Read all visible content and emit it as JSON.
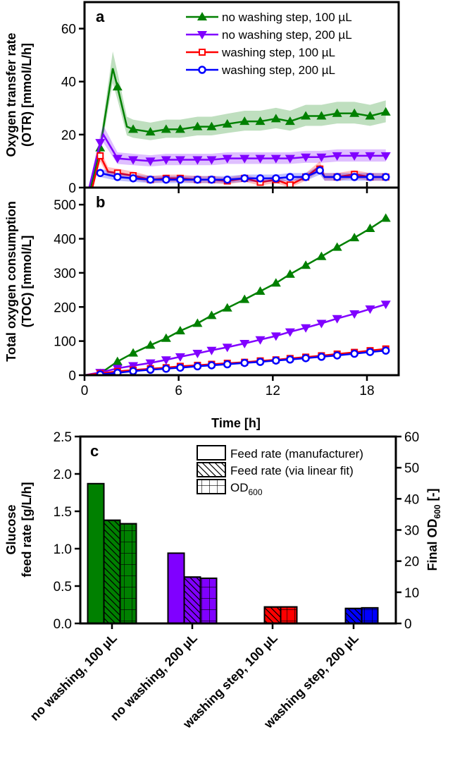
{
  "chart_data": [
    {
      "panel": "a",
      "type": "line",
      "ylabel_line1": "Oxygen transfer rate",
      "ylabel_line2": "(OTR)  [mmol/L/h]",
      "ylim": [
        0,
        70
      ],
      "yticks": [
        0,
        20,
        40,
        60
      ],
      "xlim": [
        0,
        20
      ],
      "xticks": [
        0,
        6,
        12,
        18
      ],
      "legend_placement": "top-right",
      "series": [
        {
          "name": "no washing step, 100 µL",
          "color": "#008000",
          "marker": "triangle-up",
          "points": [
            [
              0.4,
              0
            ],
            [
              1,
              15
            ],
            [
              1.8,
              45
            ],
            [
              2.1,
              38
            ],
            [
              2.7,
              23
            ],
            [
              3.1,
              22
            ],
            [
              4.2,
              21
            ],
            [
              5.2,
              22
            ],
            [
              6.1,
              22
            ],
            [
              7.2,
              23
            ],
            [
              8.1,
              23
            ],
            [
              9.1,
              24
            ],
            [
              10.2,
              25
            ],
            [
              11.2,
              25
            ],
            [
              12.2,
              26
            ],
            [
              13.1,
              25
            ],
            [
              14.1,
              27
            ],
            [
              15.1,
              27
            ],
            [
              16.1,
              28
            ],
            [
              17.2,
              28
            ],
            [
              18.2,
              27
            ],
            [
              19.2,
              28.5
            ]
          ],
          "markers": [
            [
              1,
              15
            ],
            [
              2.1,
              38
            ],
            [
              3.1,
              22
            ],
            [
              4.2,
              21
            ],
            [
              5.2,
              22
            ],
            [
              6.1,
              22
            ],
            [
              7.2,
              23
            ],
            [
              8.1,
              23
            ],
            [
              9.1,
              24
            ],
            [
              10.2,
              25
            ],
            [
              11.2,
              25
            ],
            [
              12.2,
              26
            ],
            [
              13.1,
              25
            ],
            [
              14.1,
              27
            ],
            [
              15.1,
              27
            ],
            [
              16.1,
              28
            ],
            [
              17.2,
              28
            ],
            [
              18.2,
              27
            ],
            [
              19.2,
              28.5
            ]
          ]
        },
        {
          "name": "no washing step, 200 µL",
          "color": "#8000ff",
          "marker": "triangle-down",
          "points": [
            [
              0.3,
              0
            ],
            [
              1,
              17
            ],
            [
              1.2,
              20
            ],
            [
              2.1,
              11
            ],
            [
              3.1,
              10.5
            ],
            [
              4.2,
              10
            ],
            [
              5.2,
              10.5
            ],
            [
              6.1,
              10.5
            ],
            [
              7.2,
              10.5
            ],
            [
              8.1,
              10.5
            ],
            [
              9.1,
              11
            ],
            [
              10.2,
              11
            ],
            [
              11.2,
              11
            ],
            [
              12.2,
              11
            ],
            [
              13.1,
              11
            ],
            [
              14.1,
              11.5
            ],
            [
              15.1,
              11.5
            ],
            [
              16.1,
              12
            ],
            [
              17.2,
              12
            ],
            [
              18.2,
              12
            ],
            [
              19.2,
              12
            ]
          ],
          "markers": [
            [
              1,
              17
            ],
            [
              2.1,
              11
            ],
            [
              3.1,
              10.5
            ],
            [
              4.2,
              10
            ],
            [
              5.2,
              10.5
            ],
            [
              6.1,
              10.5
            ],
            [
              7.2,
              10.5
            ],
            [
              8.1,
              10.5
            ],
            [
              9.1,
              11
            ],
            [
              10.2,
              11
            ],
            [
              11.2,
              11
            ],
            [
              12.2,
              11
            ],
            [
              13.1,
              11
            ],
            [
              14.1,
              11.5
            ],
            [
              15.1,
              11.5
            ],
            [
              16.1,
              12
            ],
            [
              17.2,
              12
            ],
            [
              18.2,
              12
            ],
            [
              19.2,
              12
            ]
          ]
        },
        {
          "name": "washing step, 100 µL",
          "color": "#ff0000",
          "marker": "square-open",
          "points": [
            [
              0.5,
              0
            ],
            [
              1,
              12
            ],
            [
              1.5,
              6
            ],
            [
              2.1,
              5.5
            ],
            [
              3.1,
              4.5
            ],
            [
              4.2,
              3
            ],
            [
              5.2,
              3.5
            ],
            [
              6.1,
              3.5
            ],
            [
              7.2,
              3
            ],
            [
              8.1,
              3
            ],
            [
              9.1,
              2.5
            ],
            [
              10.2,
              3.5
            ],
            [
              11.2,
              2
            ],
            [
              12.2,
              3
            ],
            [
              13.1,
              1
            ],
            [
              14.1,
              4
            ],
            [
              15,
              8
            ],
            [
              15.3,
              4
            ],
            [
              16.1,
              4
            ],
            [
              17.2,
              5
            ],
            [
              18.2,
              4
            ],
            [
              19.2,
              4
            ]
          ],
          "markers": [
            [
              1,
              12
            ],
            [
              2.1,
              5.5
            ],
            [
              3.1,
              4.5
            ],
            [
              4.2,
              3
            ],
            [
              5.2,
              3.5
            ],
            [
              6.1,
              3.5
            ],
            [
              7.2,
              3
            ],
            [
              8.1,
              3
            ],
            [
              9.1,
              2.5
            ],
            [
              10.2,
              3.5
            ],
            [
              11.2,
              2
            ],
            [
              12.2,
              3
            ],
            [
              13.1,
              1
            ],
            [
              14.1,
              4
            ],
            [
              15,
              7
            ],
            [
              16.1,
              4
            ],
            [
              17.2,
              5
            ],
            [
              18.2,
              4
            ],
            [
              19.2,
              4
            ]
          ]
        },
        {
          "name": "washing step, 200 µL",
          "color": "#0000ff",
          "marker": "circle-open",
          "points": [
            [
              1,
              5.5
            ],
            [
              2.1,
              4
            ],
            [
              3.1,
              3.5
            ],
            [
              4.2,
              3
            ],
            [
              5.2,
              3
            ],
            [
              6.1,
              3
            ],
            [
              7.2,
              3
            ],
            [
              8.1,
              3
            ],
            [
              9.1,
              3
            ],
            [
              10.2,
              3.5
            ],
            [
              11.2,
              3.5
            ],
            [
              12.2,
              3.5
            ],
            [
              13.1,
              4
            ],
            [
              14.1,
              4
            ],
            [
              15,
              6.5
            ],
            [
              15.3,
              4
            ],
            [
              16.1,
              4
            ],
            [
              17.2,
              4
            ],
            [
              18.2,
              4
            ],
            [
              19.2,
              4
            ]
          ],
          "markers": [
            [
              1,
              5.5
            ],
            [
              2.1,
              4
            ],
            [
              3.1,
              3.5
            ],
            [
              4.2,
              3
            ],
            [
              5.2,
              3
            ],
            [
              6.1,
              3
            ],
            [
              7.2,
              3
            ],
            [
              8.1,
              3
            ],
            [
              9.1,
              3
            ],
            [
              10.2,
              3.5
            ],
            [
              11.2,
              3.5
            ],
            [
              12.2,
              3.5
            ],
            [
              13.1,
              4
            ],
            [
              14.1,
              4
            ],
            [
              15,
              6.5
            ],
            [
              16.1,
              4
            ],
            [
              17.2,
              4
            ],
            [
              18.2,
              4
            ],
            [
              19.2,
              4
            ]
          ]
        }
      ]
    },
    {
      "panel": "b",
      "type": "line",
      "ylabel_line1": "Total oxygen consumption",
      "ylabel_line2": "(TOC)  [mmol/L]",
      "xlabel": "Time  [h]",
      "ylim": [
        0,
        550
      ],
      "yticks": [
        0,
        100,
        200,
        300,
        400,
        500
      ],
      "xlim": [
        0,
        20
      ],
      "xticks": [
        0,
        6,
        12,
        18
      ],
      "series": [
        {
          "name": "no washing step, 100 µL",
          "color": "#008000",
          "marker": "triangle-up",
          "points": [
            [
              0,
              0
            ],
            [
              1,
              5
            ],
            [
              2.1,
              40
            ],
            [
              3.1,
              65
            ],
            [
              4.2,
              88
            ],
            [
              5.2,
              108
            ],
            [
              6.1,
              130
            ],
            [
              7.2,
              152
            ],
            [
              8.1,
              175
            ],
            [
              9.1,
              197
            ],
            [
              10.2,
              222
            ],
            [
              11.2,
              246
            ],
            [
              12.2,
              270
            ],
            [
              13.1,
              296
            ],
            [
              14.1,
              322
            ],
            [
              15.1,
              348
            ],
            [
              16.1,
              375
            ],
            [
              17.2,
              403
            ],
            [
              18.2,
              430
            ],
            [
              19.2,
              460
            ]
          ]
        },
        {
          "name": "no washing step, 200 µL",
          "color": "#8000ff",
          "marker": "triangle-down",
          "points": [
            [
              0,
              0
            ],
            [
              1,
              8
            ],
            [
              2.1,
              20
            ],
            [
              3.1,
              28
            ],
            [
              4.2,
              36
            ],
            [
              5.2,
              45
            ],
            [
              6.1,
              54
            ],
            [
              7.2,
              64
            ],
            [
              8.1,
              73
            ],
            [
              9.1,
              82
            ],
            [
              10.2,
              93
            ],
            [
              11.2,
              104
            ],
            [
              12.2,
              115
            ],
            [
              13.1,
              127
            ],
            [
              14.1,
              139
            ],
            [
              15.1,
              152
            ],
            [
              16.1,
              166
            ],
            [
              17.2,
              180
            ],
            [
              18.2,
              194
            ],
            [
              19.2,
              208
            ]
          ]
        },
        {
          "name": "washing step, 100 µL",
          "color": "#ff0000",
          "marker": "square-open",
          "points": [
            [
              0,
              0
            ],
            [
              1,
              5
            ],
            [
              2.1,
              11
            ],
            [
              3.1,
              15
            ],
            [
              4.2,
              19
            ],
            [
              5.2,
              22
            ],
            [
              6.1,
              26
            ],
            [
              7.2,
              29
            ],
            [
              8.1,
              32
            ],
            [
              9.1,
              35
            ],
            [
              10.2,
              38
            ],
            [
              11.2,
              42
            ],
            [
              12.2,
              45
            ],
            [
              13.1,
              49
            ],
            [
              14.1,
              53
            ],
            [
              15.1,
              57
            ],
            [
              16.1,
              62
            ],
            [
              17.2,
              67
            ],
            [
              18.2,
              72
            ],
            [
              19.2,
              77
            ]
          ]
        },
        {
          "name": "washing step, 200 µL",
          "color": "#0000ff",
          "marker": "circle-open",
          "points": [
            [
              1,
              2
            ],
            [
              2.1,
              7
            ],
            [
              3.1,
              12
            ],
            [
              4.2,
              16
            ],
            [
              5.2,
              19
            ],
            [
              6.1,
              22
            ],
            [
              7.2,
              26
            ],
            [
              8.1,
              29
            ],
            [
              9.1,
              32
            ],
            [
              10.2,
              36
            ],
            [
              11.2,
              39
            ],
            [
              12.2,
              43
            ],
            [
              13.1,
              46
            ],
            [
              14.1,
              50
            ],
            [
              15.1,
              54
            ],
            [
              16.1,
              58
            ],
            [
              17.2,
              63
            ],
            [
              18.2,
              68
            ],
            [
              19.2,
              72
            ]
          ]
        }
      ]
    },
    {
      "panel": "c",
      "type": "bar",
      "ylabel_line1": "Glucose",
      "ylabel_line2": "feed rate  [g/L/h]",
      "y2label": "Final OD",
      "y2label_sub": "600",
      "y2label_unit": "  [-]",
      "ylim": [
        0,
        2.5
      ],
      "yticks": [
        "0.0",
        "0.5",
        "1.0",
        "1.5",
        "2.0",
        "2.5"
      ],
      "y2lim": [
        0,
        60
      ],
      "y2ticks": [
        0,
        10,
        20,
        30,
        40,
        50,
        60
      ],
      "categories": [
        "no washing, 100 µL",
        "no washing, 200 µL",
        "washing step, 100 µL",
        "washing step, 200 µL"
      ],
      "colors": [
        "#008000",
        "#8000ff",
        "#ff0000",
        "#0000ff"
      ],
      "series": [
        {
          "name": "Feed rate (manufacturer)",
          "axis": "left",
          "pattern": "solid",
          "values": [
            1.87,
            0.94,
            null,
            null
          ]
        },
        {
          "name": "Feed rate (via linear fit)",
          "axis": "left",
          "pattern": "hatch",
          "values": [
            1.38,
            0.62,
            0.22,
            0.2
          ]
        },
        {
          "name": "OD",
          "name_sub": "600",
          "axis": "right",
          "pattern": "grid",
          "values": [
            32,
            14.5,
            5.3,
            5.0
          ]
        }
      ]
    }
  ]
}
